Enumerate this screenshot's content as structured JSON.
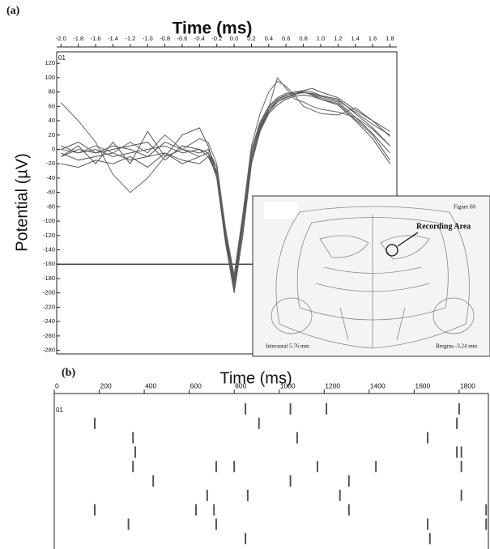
{
  "chart_data": [
    {
      "type": "line",
      "panel": "(a)",
      "title": "Time (ms)",
      "ylabel": "Potential (µV)",
      "corner_label": "01",
      "x": [
        -2.0,
        -1.8,
        -1.6,
        -1.4,
        -1.2,
        -1.0,
        -0.8,
        -0.6,
        -0.4,
        -0.3,
        -0.2,
        -0.1,
        0,
        0.1,
        0.2,
        0.3,
        0.4,
        0.5,
        0.6,
        0.7,
        0.8,
        0.9,
        1.0,
        1.2,
        1.4,
        1.6,
        1.8
      ],
      "series": [
        {
          "color": "#555555",
          "values": [
            5,
            -5,
            0,
            -10,
            -5,
            0,
            5,
            -5,
            0,
            -5,
            -30,
            -120,
            -195,
            -110,
            -15,
            30,
            55,
            68,
            75,
            80,
            82,
            80,
            75,
            70,
            50,
            30,
            5
          ]
        },
        {
          "color": "#555555",
          "values": [
            -10,
            0,
            -5,
            5,
            0,
            -10,
            10,
            0,
            -5,
            0,
            -25,
            -110,
            -185,
            -100,
            -5,
            35,
            58,
            70,
            76,
            78,
            80,
            77,
            72,
            66,
            45,
            22,
            -5
          ]
        },
        {
          "color": "#555555",
          "values": [
            -5,
            -15,
            -10,
            -5,
            -15,
            -10,
            -5,
            -20,
            -10,
            -5,
            -40,
            -130,
            -200,
            -120,
            -20,
            25,
            50,
            62,
            70,
            74,
            76,
            74,
            70,
            64,
            42,
            20,
            -15
          ]
        },
        {
          "color": "#555555",
          "values": [
            0,
            10,
            -5,
            0,
            5,
            10,
            -15,
            5,
            0,
            -10,
            -35,
            -125,
            -190,
            -105,
            -10,
            28,
            52,
            66,
            73,
            77,
            79,
            78,
            74,
            68,
            52,
            35,
            20
          ]
        },
        {
          "color": "#555555",
          "values": [
            -20,
            -25,
            -15,
            -20,
            -10,
            -25,
            -5,
            -15,
            -20,
            -10,
            -30,
            -115,
            -180,
            -95,
            0,
            38,
            60,
            72,
            78,
            80,
            80,
            76,
            70,
            62,
            40,
            15,
            -20
          ]
        },
        {
          "color": "#666666",
          "values": [
            65,
            40,
            10,
            -35,
            -60,
            -40,
            -10,
            0,
            15,
            10,
            -20,
            -110,
            -175,
            -90,
            5,
            50,
            80,
            95,
            88,
            75,
            60,
            55,
            50,
            48,
            58,
            40,
            25
          ]
        },
        {
          "color": "#666666",
          "values": [
            0,
            -5,
            5,
            -5,
            10,
            -5,
            20,
            0,
            -10,
            -5,
            -25,
            -115,
            -190,
            -100,
            -10,
            32,
            58,
            100,
            85,
            70,
            66,
            60,
            56,
            52,
            45,
            28,
            5
          ]
        },
        {
          "color": "#555555",
          "values": [
            -10,
            5,
            -20,
            10,
            -20,
            25,
            -10,
            20,
            30,
            5,
            -35,
            -120,
            -185,
            -105,
            -15,
            30,
            55,
            66,
            72,
            76,
            82,
            85,
            80,
            72,
            55,
            40,
            18
          ]
        }
      ],
      "threshold": -160,
      "xlim": [
        -2.05,
        1.88
      ],
      "xticks": [
        {
          "value": -2.0,
          "label": "-2.0"
        },
        -1.8,
        -1.6,
        -1.4,
        -1.2,
        {
          "value": -1.0,
          "label": "-1.0"
        },
        -0.8,
        -0.6,
        -0.4,
        -0.2,
        {
          "value": 0,
          "label": "0.0"
        },
        0.2,
        0.4,
        0.6,
        0.8,
        {
          "value": 1.0,
          "label": "1.0"
        },
        1.2,
        1.4,
        1.6,
        1.8
      ],
      "ylim": [
        -285,
        136
      ],
      "yticks": [
        120,
        100,
        80,
        60,
        40,
        20,
        0,
        -20,
        -40,
        -60,
        -80,
        -100,
        -120,
        -140,
        -160,
        -180,
        -200,
        -220,
        -240,
        -260,
        -280
      ],
      "inset": {
        "figure": "Figure 60",
        "annotation": "Recording Area",
        "left_note": "Interaural 5.76 mm",
        "right_note": "Bregma -3.24 mm"
      }
    },
    {
      "type": "raster",
      "panel": "(b)",
      "title": "Time (ms)",
      "corner_label": "01",
      "trials": [
        [
          850,
          1050,
          1210,
          1800
        ],
        [
          180,
          910,
          1790
        ],
        [
          350,
          1080,
          1660
        ],
        [
          360,
          1790,
          1810
        ],
        [
          350,
          720,
          800,
          1170,
          1430,
          1810
        ],
        [
          440,
          1050,
          1310
        ],
        [
          680,
          860,
          1270,
          1810
        ],
        [
          180,
          630,
          710,
          1310,
          1920
        ],
        [
          330,
          720,
          1660,
          1920
        ],
        [
          850,
          1670
        ]
      ],
      "color": "#555555",
      "xlim": [
        0,
        1930
      ],
      "xticks": [
        0,
        200,
        400,
        600,
        800,
        1000,
        1200,
        1400,
        1600,
        1800
      ]
    }
  ]
}
